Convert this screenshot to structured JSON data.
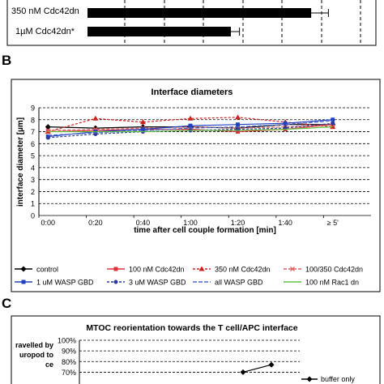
{
  "panel_a": {
    "rows": [
      {
        "label": "350 nM Cdc42dn",
        "value": 0.78,
        "error": 0.06
      },
      {
        "label": "1µM Cdc42dn*",
        "value": 0.5,
        "error": 0.03
      }
    ],
    "note": "values read as fraction of visible axis width"
  },
  "panel_b_letter": "B",
  "panel_c_letter": "C",
  "chart_data": [
    {
      "type": "line",
      "title": "Interface diameters",
      "xlabel": "time after cell couple formation [min]",
      "ylabel": "interface diameter [µm]",
      "categories": [
        "0:00",
        "0:20",
        "0:40",
        "1:00",
        "1:20",
        "1:40",
        "≥ 5'"
      ],
      "ylim": [
        0,
        9
      ],
      "yticks": [
        "0",
        "1",
        "2",
        "3",
        "4",
        "5",
        "6",
        "7",
        "8",
        "9"
      ],
      "grid": true,
      "legend_position": "bottom",
      "series": [
        {
          "name": "control",
          "color": "#000000",
          "marker": "diamond",
          "dash": "",
          "values": [
            7.4,
            7.3,
            7.4,
            7.4,
            7.3,
            7.6,
            7.6
          ]
        },
        {
          "name": "100 nM Cdc42dn",
          "color": "#e0303a",
          "marker": "square",
          "dash": "",
          "values": [
            7.0,
            7.1,
            7.2,
            7.2,
            7.0,
            7.2,
            7.6
          ]
        },
        {
          "name": "350 nM Cdc42dn",
          "color": "#d0201c",
          "marker": "triangle",
          "dash": "3,2",
          "values": [
            7.0,
            8.1,
            7.8,
            8.1,
            8.2,
            7.8,
            7.4
          ]
        },
        {
          "name": "100/350 Cdc42dn",
          "color": "#e06060",
          "marker": "x",
          "dash": "4,2",
          "values": [
            7.1,
            7.2,
            7.3,
            7.4,
            7.3,
            7.4,
            7.6
          ]
        },
        {
          "name": "1 uM WASP GBD",
          "color": "#2040c0",
          "marker": "square",
          "dash": "",
          "values": [
            6.6,
            7.0,
            7.2,
            7.5,
            7.6,
            7.7,
            8.0
          ]
        },
        {
          "name": "3 uM WASP GBD",
          "color": "#2a3a9a",
          "marker": "circle",
          "dash": "3,2",
          "values": [
            6.5,
            6.8,
            7.0,
            7.1,
            7.2,
            7.3,
            7.7
          ]
        },
        {
          "name": "all WASP GBD",
          "color": "#4a6ad0",
          "marker": "none",
          "dash": "5,2",
          "values": [
            6.7,
            6.9,
            7.1,
            7.3,
            7.4,
            7.6,
            7.9
          ]
        },
        {
          "name": "100 nM Rac1 dn",
          "color": "#60c040",
          "marker": "none",
          "dash": "",
          "values": [
            7.0,
            7.0,
            7.0,
            7.1,
            7.1,
            7.2,
            7.4
          ]
        }
      ]
    },
    {
      "type": "line",
      "title": "MTOC reorientation towards the T cell/APC interface",
      "ylabel_lines": [
        "ravelled by",
        "uropod to",
        "ce"
      ],
      "yticks": [
        "100%",
        "90%",
        "80%",
        "70%"
      ],
      "ylim": [
        65,
        100
      ],
      "grid": true,
      "series": [
        {
          "name": "buffer only",
          "color": "#000000",
          "marker": "diamond",
          "values": [
            70,
            77
          ]
        }
      ]
    }
  ]
}
